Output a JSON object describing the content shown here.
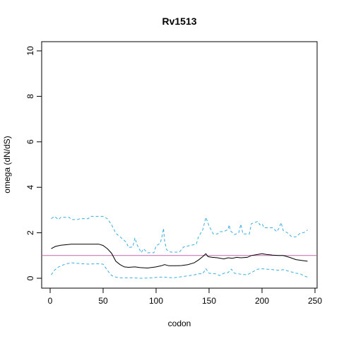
{
  "chart_data": {
    "type": "line",
    "title": "Rv1513",
    "xlabel": "codon",
    "ylabel": "omega (dN/dS)",
    "xlim": [
      0,
      250
    ],
    "ylim": [
      0,
      10
    ],
    "x_ticks": [
      0,
      50,
      100,
      150,
      200,
      250
    ],
    "y_ticks": [
      0,
      2,
      4,
      6,
      8,
      10
    ],
    "grid": false,
    "reference_line": {
      "y": 1,
      "color": "#c06aa8"
    },
    "series": [
      {
        "role": "upper-bound",
        "style": "dashed",
        "color": "#3aaee0",
        "points": [
          [
            1,
            2.62
          ],
          [
            4,
            2.72
          ],
          [
            8,
            2.58
          ],
          [
            10,
            2.68
          ],
          [
            18,
            2.68
          ],
          [
            20,
            2.58
          ],
          [
            26,
            2.58
          ],
          [
            28,
            2.62
          ],
          [
            36,
            2.62
          ],
          [
            38,
            2.72
          ],
          [
            50,
            2.72
          ],
          [
            54,
            2.62
          ],
          [
            58,
            2.35
          ],
          [
            62,
            1.98
          ],
          [
            66,
            1.82
          ],
          [
            72,
            1.58
          ],
          [
            74,
            1.35
          ],
          [
            78,
            1.38
          ],
          [
            80,
            1.78
          ],
          [
            82,
            1.48
          ],
          [
            86,
            1.12
          ],
          [
            88,
            1.3
          ],
          [
            92,
            1.12
          ],
          [
            98,
            1.12
          ],
          [
            100,
            1.42
          ],
          [
            104,
            1.55
          ],
          [
            106,
            1.92
          ],
          [
            107,
            2.2
          ],
          [
            108,
            1.65
          ],
          [
            110,
            1.25
          ],
          [
            114,
            1.15
          ],
          [
            122,
            1.15
          ],
          [
            126,
            1.38
          ],
          [
            138,
            1.5
          ],
          [
            140,
            1.82
          ],
          [
            144,
            2.12
          ],
          [
            147,
            2.68
          ],
          [
            150,
            2.3
          ],
          [
            154,
            1.95
          ],
          [
            158,
            1.95
          ],
          [
            160,
            2.05
          ],
          [
            164,
            2.05
          ],
          [
            168,
            2.15
          ],
          [
            169,
            2.35
          ],
          [
            170,
            2.1
          ],
          [
            174,
            1.92
          ],
          [
            178,
            2.0
          ],
          [
            180,
            2.38
          ],
          [
            182,
            1.95
          ],
          [
            188,
            1.95
          ],
          [
            190,
            2.4
          ],
          [
            196,
            2.5
          ],
          [
            198,
            2.35
          ],
          [
            200,
            2.4
          ],
          [
            202,
            2.22
          ],
          [
            210,
            2.22
          ],
          [
            214,
            2.05
          ],
          [
            216,
            2.2
          ],
          [
            218,
            2.45
          ],
          [
            220,
            2.1
          ],
          [
            224,
            2.0
          ],
          [
            228,
            1.82
          ],
          [
            232,
            1.82
          ],
          [
            236,
            1.98
          ],
          [
            240,
            2.02
          ],
          [
            243,
            2.12
          ]
        ]
      },
      {
        "role": "estimate",
        "style": "solid",
        "color": "#000000",
        "points": [
          [
            1,
            1.3
          ],
          [
            5,
            1.4
          ],
          [
            10,
            1.45
          ],
          [
            20,
            1.5
          ],
          [
            30,
            1.5
          ],
          [
            40,
            1.5
          ],
          [
            46,
            1.5
          ],
          [
            50,
            1.44
          ],
          [
            54,
            1.3
          ],
          [
            58,
            1.1
          ],
          [
            62,
            0.75
          ],
          [
            66,
            0.6
          ],
          [
            70,
            0.5
          ],
          [
            74,
            0.48
          ],
          [
            80,
            0.5
          ],
          [
            85,
            0.47
          ],
          [
            92,
            0.45
          ],
          [
            100,
            0.5
          ],
          [
            105,
            0.55
          ],
          [
            108,
            0.6
          ],
          [
            112,
            0.55
          ],
          [
            118,
            0.55
          ],
          [
            124,
            0.56
          ],
          [
            130,
            0.6
          ],
          [
            136,
            0.68
          ],
          [
            140,
            0.8
          ],
          [
            144,
            0.95
          ],
          [
            147,
            1.08
          ],
          [
            149,
            0.95
          ],
          [
            153,
            0.92
          ],
          [
            158,
            0.9
          ],
          [
            164,
            0.85
          ],
          [
            168,
            0.9
          ],
          [
            172,
            0.88
          ],
          [
            176,
            0.92
          ],
          [
            180,
            0.9
          ],
          [
            186,
            0.92
          ],
          [
            190,
            1.0
          ],
          [
            196,
            1.05
          ],
          [
            200,
            1.08
          ],
          [
            204,
            1.05
          ],
          [
            210,
            1.02
          ],
          [
            216,
            1.0
          ],
          [
            220,
            1.0
          ],
          [
            226,
            0.92
          ],
          [
            232,
            0.82
          ],
          [
            238,
            0.78
          ],
          [
            243,
            0.75
          ]
        ]
      },
      {
        "role": "lower-bound",
        "style": "dashed",
        "color": "#3aaee0",
        "points": [
          [
            1,
            0.15
          ],
          [
            4,
            0.35
          ],
          [
            8,
            0.5
          ],
          [
            14,
            0.62
          ],
          [
            20,
            0.68
          ],
          [
            28,
            0.65
          ],
          [
            36,
            0.62
          ],
          [
            44,
            0.64
          ],
          [
            50,
            0.62
          ],
          [
            54,
            0.35
          ],
          [
            58,
            0.12
          ],
          [
            62,
            0.05
          ],
          [
            66,
            0.02
          ],
          [
            72,
            0.02
          ],
          [
            78,
            0.02
          ],
          [
            86,
            0.0
          ],
          [
            96,
            0.02
          ],
          [
            102,
            0.05
          ],
          [
            108,
            0.05
          ],
          [
            116,
            0.02
          ],
          [
            126,
            0.08
          ],
          [
            136,
            0.15
          ],
          [
            140,
            0.2
          ],
          [
            144,
            0.2
          ],
          [
            147,
            0.42
          ],
          [
            150,
            0.22
          ],
          [
            156,
            0.2
          ],
          [
            160,
            0.12
          ],
          [
            164,
            0.22
          ],
          [
            168,
            0.25
          ],
          [
            171,
            0.4
          ],
          [
            174,
            0.22
          ],
          [
            180,
            0.18
          ],
          [
            186,
            0.15
          ],
          [
            190,
            0.25
          ],
          [
            196,
            0.4
          ],
          [
            200,
            0.42
          ],
          [
            204,
            0.4
          ],
          [
            210,
            0.38
          ],
          [
            216,
            0.35
          ],
          [
            220,
            0.38
          ],
          [
            226,
            0.3
          ],
          [
            232,
            0.22
          ],
          [
            236,
            0.2
          ],
          [
            240,
            0.1
          ],
          [
            243,
            0.05
          ]
        ]
      }
    ]
  }
}
